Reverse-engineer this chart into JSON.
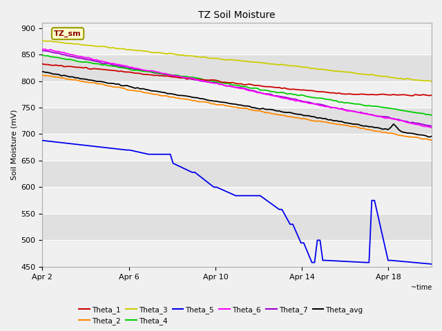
{
  "title": "TZ Soil Moisture",
  "xlabel": "~time",
  "ylabel": "Soil Moisture (mV)",
  "ylim": [
    450,
    910
  ],
  "yticks": [
    450,
    500,
    550,
    600,
    650,
    700,
    750,
    800,
    850,
    900
  ],
  "xlim": [
    2,
    20
  ],
  "xtick_labels": [
    "Apr 2",
    "Apr 6",
    "Apr 10",
    "Apr 14",
    "Apr 18"
  ],
  "xtick_positions": [
    2,
    6,
    10,
    14,
    18
  ],
  "bg_light": "#f0f0f0",
  "bg_dark": "#e0e0e0",
  "fig_bg": "#f0f0f0",
  "series": {
    "Theta_1": {
      "color": "#cc0000"
    },
    "Theta_2": {
      "color": "#ff8800"
    },
    "Theta_3": {
      "color": "#cccc00"
    },
    "Theta_4": {
      "color": "#00cc00"
    },
    "Theta_5": {
      "color": "#0000ee"
    },
    "Theta_6": {
      "color": "#ff00ff"
    },
    "Theta_7": {
      "color": "#9900cc"
    },
    "Theta_avg": {
      "color": "#000000"
    }
  },
  "legend_label": "TZ_sm",
  "legend_bg": "#ffffcc",
  "legend_border": "#999900",
  "legend_text_color": "#880000",
  "lw": 1.3
}
